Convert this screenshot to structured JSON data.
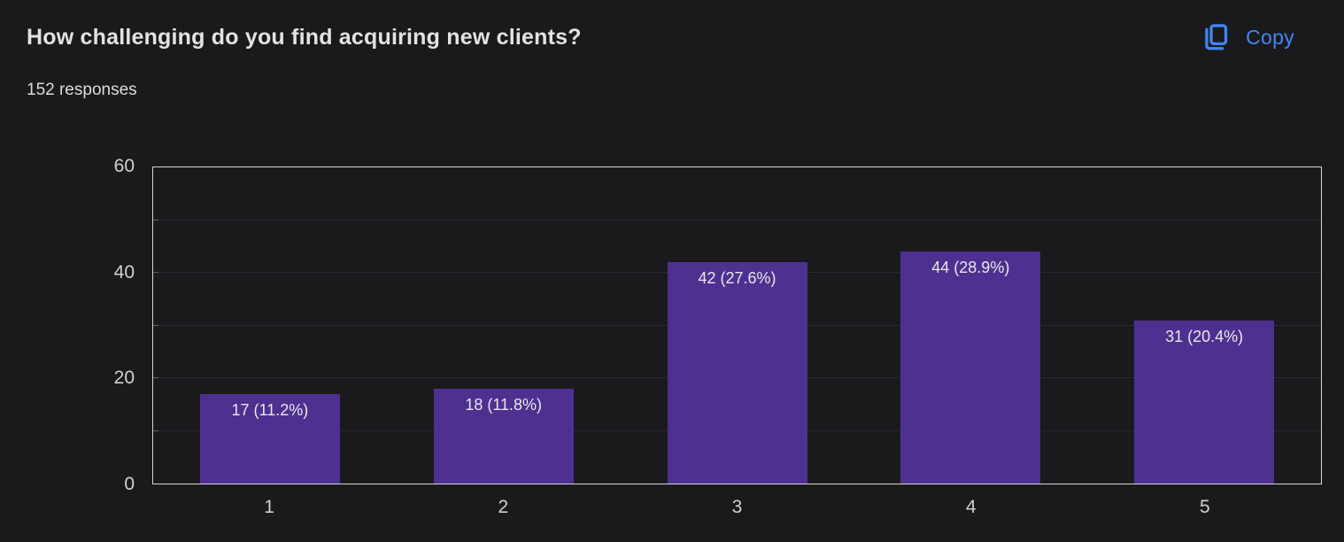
{
  "header": {
    "title": "How challenging do you find acquiring new clients?",
    "responses": "152 responses",
    "copy_label": "Copy"
  },
  "colors": {
    "background": "#1a1a1d",
    "accent_blue": "#4285f4",
    "bar_purple": "#4e3091",
    "axis_border": "#d7d7d5",
    "gridline": "#2b2b2f"
  },
  "chart_data": {
    "type": "bar",
    "title": "How challenging do you find acquiring new clients?",
    "categories": [
      "1",
      "2",
      "3",
      "4",
      "5"
    ],
    "values": [
      17,
      18,
      42,
      44,
      31
    ],
    "percentages": [
      11.2,
      11.8,
      27.6,
      28.9,
      20.4
    ],
    "bar_labels": [
      "17 (11.2%)",
      "18 (11.8%)",
      "42 (27.6%)",
      "44 (28.9%)",
      "31 (20.4%)"
    ],
    "total_responses": 152,
    "xlabel": "",
    "ylabel": "",
    "ylim": [
      0,
      60
    ],
    "yticks": [
      0,
      20,
      40,
      60
    ],
    "grid_step": 10,
    "grid": true,
    "legend_position": "none"
  }
}
